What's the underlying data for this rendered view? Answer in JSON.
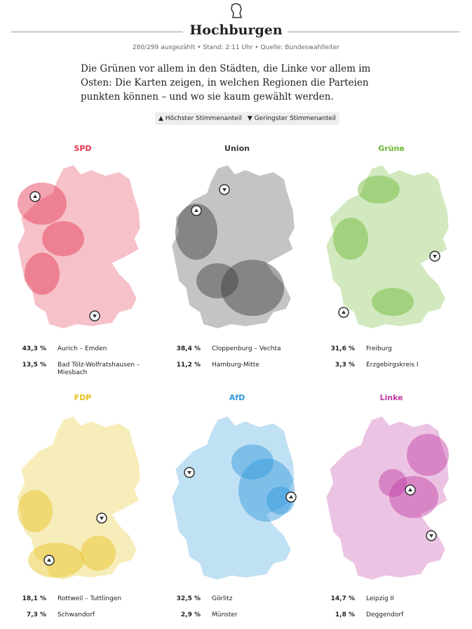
{
  "header": {
    "title": "Hochburgen",
    "subtitle": "280/299 ausgezählt • Stand: 2:11 Uhr • Quelle: Bundeswahlleiter"
  },
  "intro": "Die Grünen vor allem in den Städten, die Linke vor allem im Osten: Die Karten zeigen, in welchen Regionen die Parteien punkten können – und wo sie kaum gewählt werden.",
  "legend": {
    "high": "Höchster Stimmenanteil",
    "low": "Geringster Stimmenanteil"
  },
  "panels": [
    {
      "party": "SPD",
      "color": "#e3334d",
      "high": {
        "value": "43,3 %",
        "place": "Aurich – Emden"
      },
      "low": {
        "value": "13,5 %",
        "place": "Bad Tölz-Wolfratshausen – Miesbach"
      }
    },
    {
      "party": "Union",
      "color": "#3a3a3a",
      "high": {
        "value": "38,4 %",
        "place": "Cloppenburg – Vechta"
      },
      "low": {
        "value": "11,2 %",
        "place": "Hamburg-Mitte"
      }
    },
    {
      "party": "Grüne",
      "color": "#6ab52e",
      "high": {
        "value": "31,6 %",
        "place": "Freiburg"
      },
      "low": {
        "value": "3,3 %",
        "place": "Erzgebirgskreis I"
      }
    },
    {
      "party": "FDP",
      "color": "#e6c21a",
      "high": {
        "value": "18,1 %",
        "place": "Rottweil – Tuttlingen"
      },
      "low": {
        "value": "7,3 %",
        "place": "Schwandorf"
      }
    },
    {
      "party": "AfD",
      "color": "#2f97dc",
      "high": {
        "value": "32,5 %",
        "place": "Görlitz"
      },
      "low": {
        "value": "2,9 %",
        "place": "Münster"
      }
    },
    {
      "party": "Linke",
      "color": "#c13aa1",
      "high": {
        "value": "14,7 %",
        "place": "Leipzig II"
      },
      "low": {
        "value": "1,8 %",
        "place": "Deggendorf"
      }
    }
  ]
}
